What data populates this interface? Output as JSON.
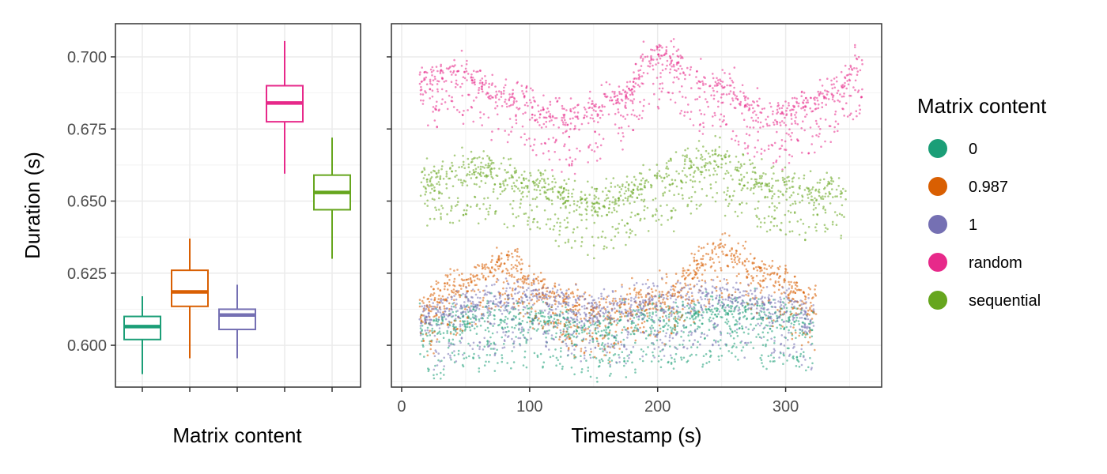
{
  "chart_data": [
    {
      "type": "box",
      "xlabel": "Matrix content",
      "ylabel": "Duration (s)",
      "ylim": [
        0.5855,
        0.7115
      ],
      "yticks": [
        0.6,
        0.625,
        0.65,
        0.675,
        0.7
      ],
      "ytick_labels": [
        "0.600",
        "0.625",
        "0.650",
        "0.675",
        "0.700"
      ],
      "grid": true,
      "categories": [
        "0",
        "0.987",
        "1",
        "random",
        "sequential"
      ],
      "boxes": [
        {
          "name": "0",
          "color": "#1b9e77",
          "whisker_low": 0.59,
          "q1": 0.602,
          "median": 0.6065,
          "q3": 0.61,
          "whisker_high": 0.617
        },
        {
          "name": "0.987",
          "color": "#d95f02",
          "whisker_low": 0.5955,
          "q1": 0.6135,
          "median": 0.6185,
          "q3": 0.626,
          "whisker_high": 0.637
        },
        {
          "name": "1",
          "color": "#7570b3",
          "whisker_low": 0.5955,
          "q1": 0.6055,
          "median": 0.6105,
          "q3": 0.6125,
          "whisker_high": 0.621
        },
        {
          "name": "random",
          "color": "#e7298a",
          "whisker_low": 0.6595,
          "q1": 0.6775,
          "median": 0.684,
          "q3": 0.69,
          "whisker_high": 0.7055
        },
        {
          "name": "sequential",
          "color": "#66a61e",
          "whisker_low": 0.63,
          "q1": 0.647,
          "median": 0.653,
          "q3": 0.659,
          "whisker_high": 0.672
        }
      ]
    },
    {
      "type": "scatter",
      "xlabel": "Timestamp (s)",
      "ylabel": "",
      "xlim": [
        -8,
        375
      ],
      "ylim": [
        0.5855,
        0.7115
      ],
      "xticks": [
        0,
        100,
        200,
        300
      ],
      "xtick_labels": [
        "0",
        "100",
        "200",
        "300"
      ],
      "grid": true,
      "series": [
        {
          "name": "0",
          "color": "#1b9e77",
          "x_range": [
            14,
            322
          ],
          "curve": [
            [
              14,
              0.605
            ],
            [
              60,
              0.609
            ],
            [
              100,
              0.609
            ],
            [
              150,
              0.605
            ],
            [
              200,
              0.609
            ],
            [
              250,
              0.611
            ],
            [
              300,
              0.609
            ],
            [
              322,
              0.607
            ]
          ],
          "low_band_offset": -0.0125,
          "low_band_x_range": [
            20,
            322
          ]
        },
        {
          "name": "0.987",
          "color": "#d95f02",
          "x_range": [
            14,
            324
          ],
          "curve": [
            [
              14,
              0.612
            ],
            [
              40,
              0.619
            ],
            [
              80,
              0.629
            ],
            [
              110,
              0.618
            ],
            [
              150,
              0.611
            ],
            [
              200,
              0.616
            ],
            [
              250,
              0.632
            ],
            [
              290,
              0.623
            ],
            [
              324,
              0.613
            ]
          ],
          "low_band_offset": -0.011,
          "low_band_x_range": [
            14,
            324
          ]
        },
        {
          "name": "1",
          "color": "#7570b3",
          "x_range": [
            14,
            322
          ],
          "curve": [
            [
              14,
              0.609
            ],
            [
              60,
              0.614
            ],
            [
              100,
              0.617
            ],
            [
              150,
              0.612
            ],
            [
              200,
              0.614
            ],
            [
              250,
              0.617
            ],
            [
              300,
              0.613
            ],
            [
              322,
              0.609
            ]
          ],
          "low_band_offset": -0.013,
          "low_band_x_range": [
            25,
            322
          ]
        },
        {
          "name": "random",
          "color": "#e7298a",
          "x_range": [
            14,
            360
          ],
          "curve": [
            [
              14,
              0.69
            ],
            [
              40,
              0.695
            ],
            [
              80,
              0.687
            ],
            [
              130,
              0.677
            ],
            [
              170,
              0.685
            ],
            [
              200,
              0.7
            ],
            [
              240,
              0.69
            ],
            [
              290,
              0.679
            ],
            [
              330,
              0.685
            ],
            [
              360,
              0.697
            ]
          ],
          "low_band_offset": -0.012,
          "low_band_x_range": [
            20,
            360
          ]
        },
        {
          "name": "sequential",
          "color": "#66a61e",
          "x_range": [
            14,
            347
          ],
          "curve": [
            [
              14,
              0.656
            ],
            [
              60,
              0.661
            ],
            [
              100,
              0.656
            ],
            [
              150,
              0.648
            ],
            [
              200,
              0.657
            ],
            [
              240,
              0.664
            ],
            [
              300,
              0.654
            ],
            [
              347,
              0.652
            ]
          ],
          "low_band_offset": -0.012,
          "low_band_x_range": [
            20,
            347
          ]
        }
      ]
    }
  ],
  "legend": {
    "title": "Matrix content",
    "items": [
      {
        "label": "0",
        "color": "#1b9e77"
      },
      {
        "label": "0.987",
        "color": "#d95f02"
      },
      {
        "label": "1",
        "color": "#7570b3"
      },
      {
        "label": "random",
        "color": "#e7298a"
      },
      {
        "label": "sequential",
        "color": "#66a61e"
      }
    ]
  }
}
